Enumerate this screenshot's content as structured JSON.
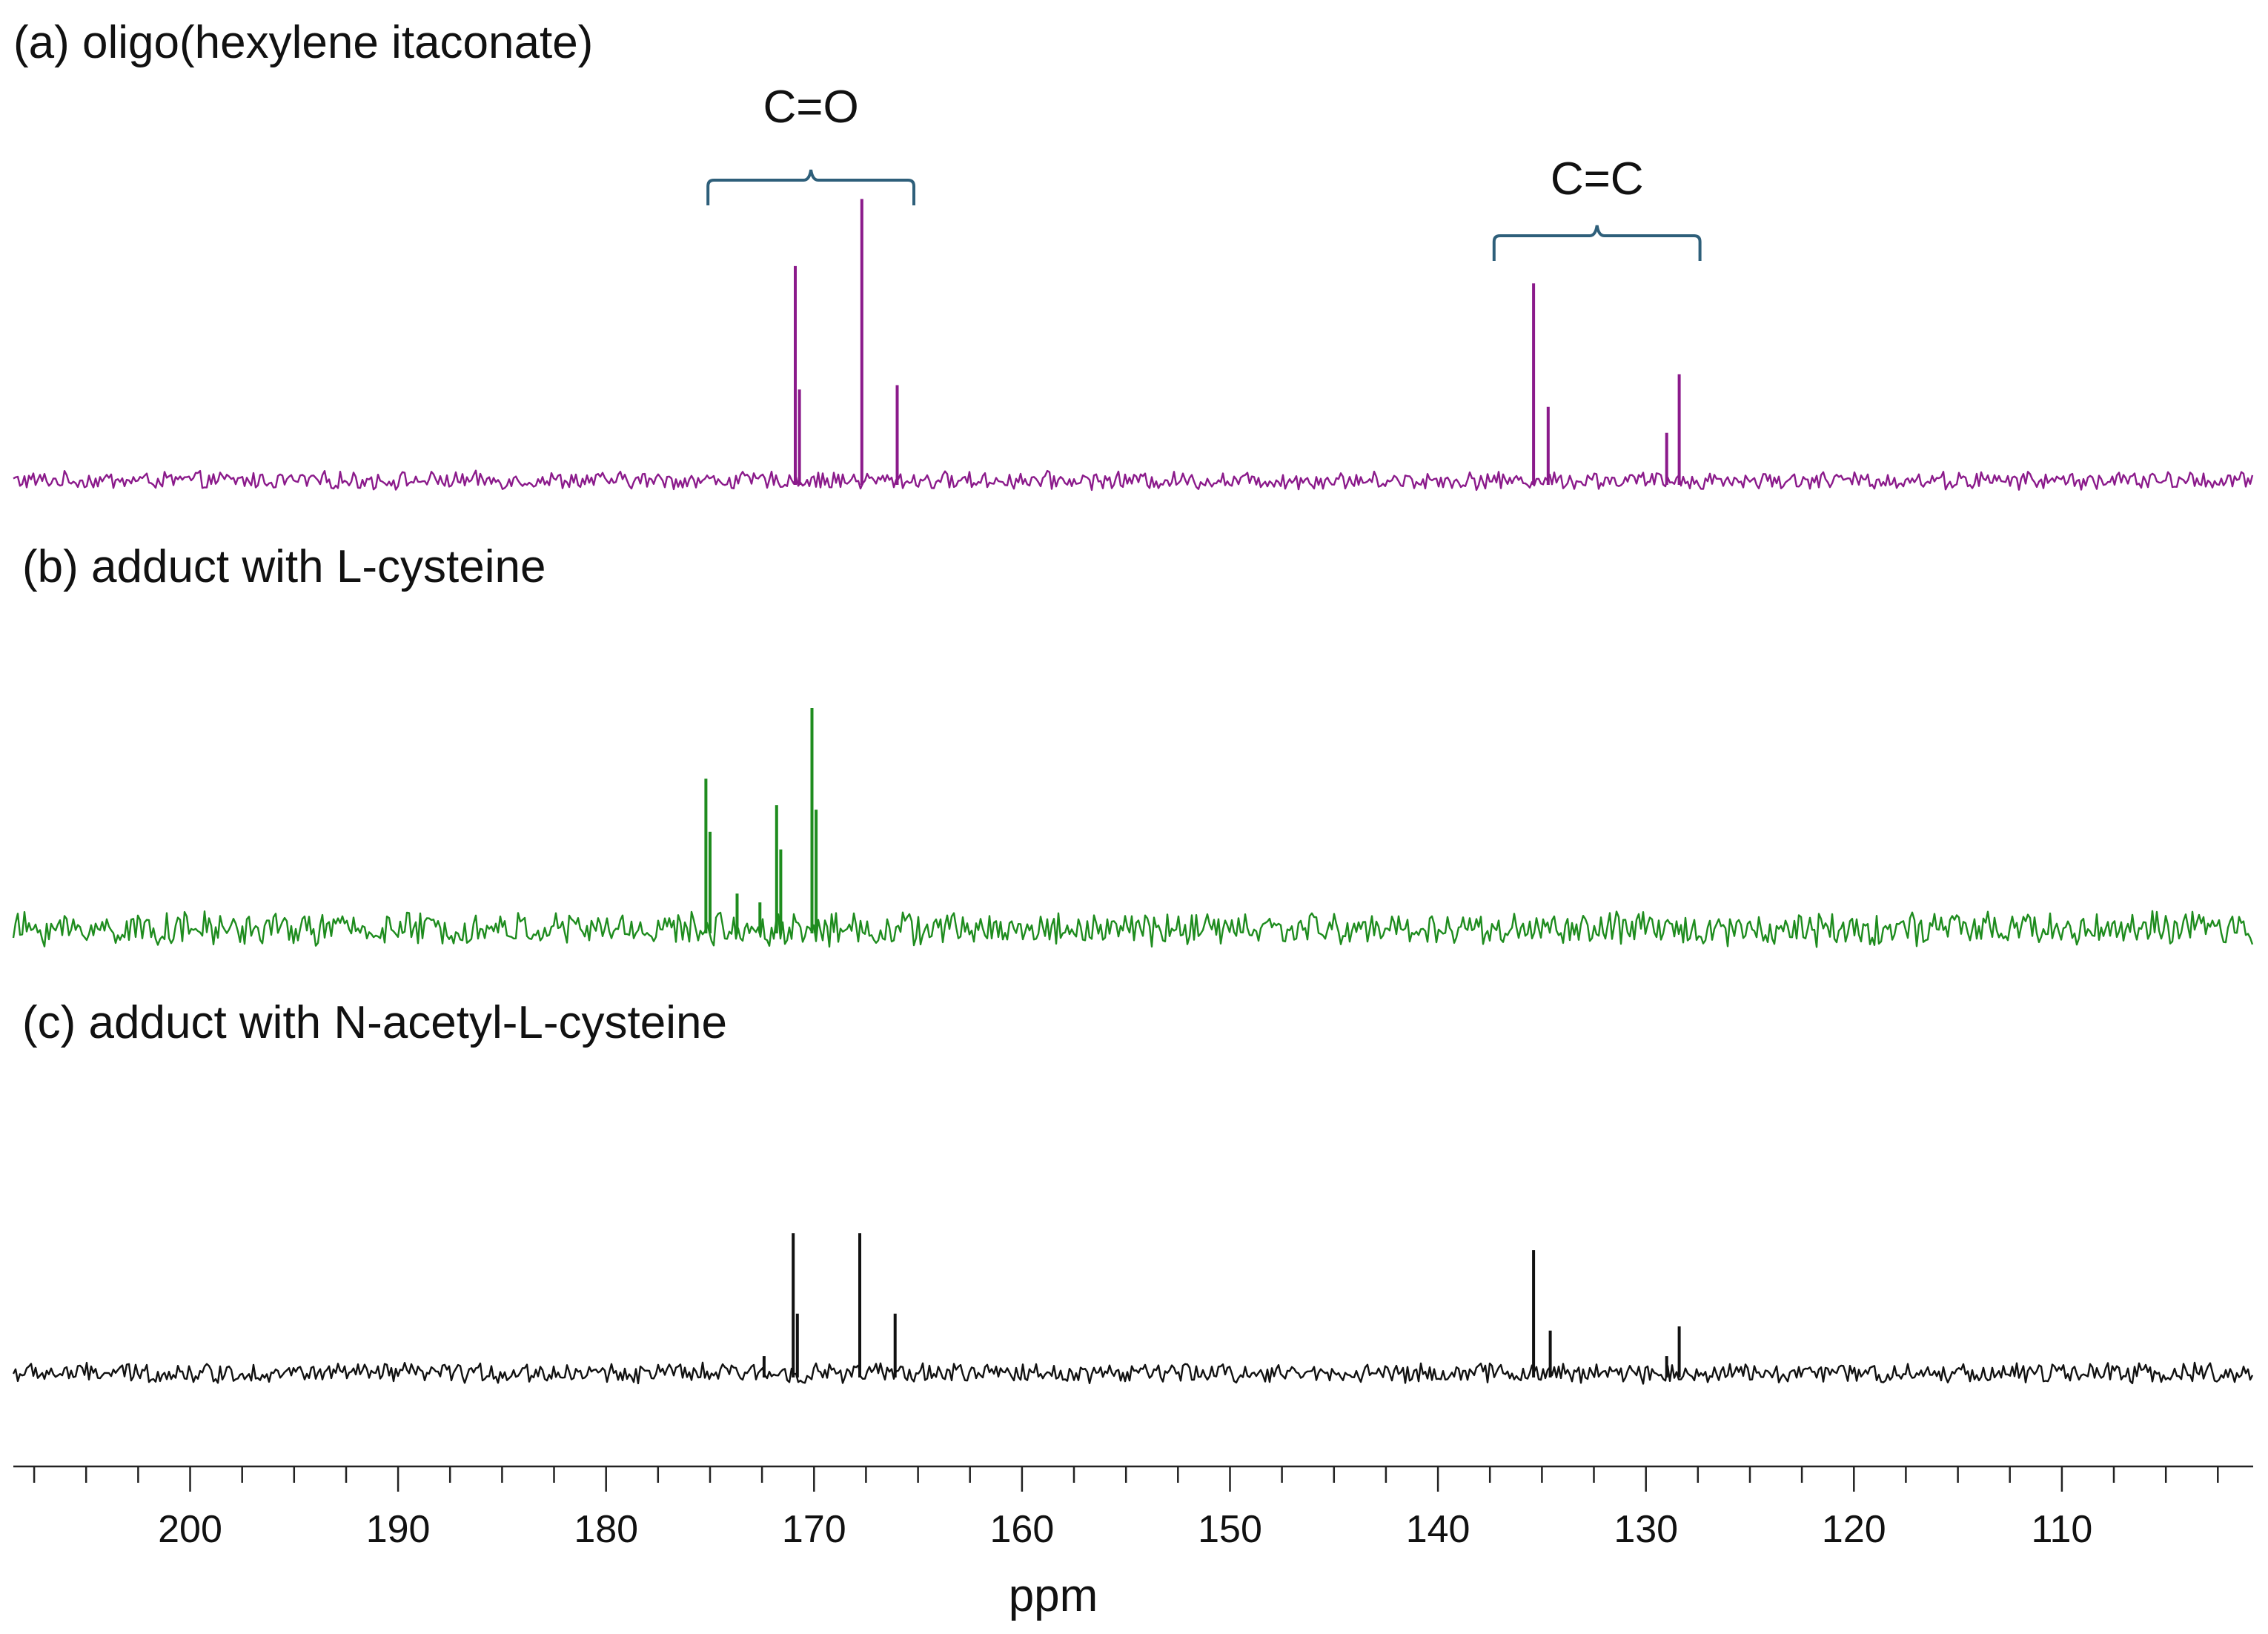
{
  "chart_data": {
    "type": "line",
    "xlabel": "ppm",
    "x_axis_reversed": true,
    "xlim": [
      208.5,
      100.8
    ],
    "ticks": {
      "major": [
        200,
        190,
        180,
        170,
        160,
        150,
        140,
        130,
        120,
        110
      ],
      "major_labels": [
        "200",
        "190",
        "180",
        "170",
        "160",
        "150",
        "140",
        "130",
        "120",
        "110"
      ],
      "minor_step": 2.5
    },
    "y_axis_shown": false,
    "grid": false,
    "series": [
      {
        "panel_label": "(a) oligo(hexylene itaconate)",
        "color": "#8B1A8B",
        "noise": 0.035,
        "peaks": [
          {
            "ppm": 170.9,
            "height": 0.99
          },
          {
            "ppm": 170.7,
            "height": 0.42
          },
          {
            "ppm": 167.7,
            "height": 1.3
          },
          {
            "ppm": 166.0,
            "height": 0.44
          },
          {
            "ppm": 135.4,
            "height": 0.91
          },
          {
            "ppm": 134.7,
            "height": 0.34
          },
          {
            "ppm": 129.0,
            "height": 0.22
          },
          {
            "ppm": 128.4,
            "height": 0.49
          }
        ]
      },
      {
        "panel_label": "(b) adduct with L-cysteine",
        "color": "#1E8C1E",
        "noise": 0.065,
        "peaks": [
          {
            "ppm": 175.2,
            "height": 0.68
          },
          {
            "ppm": 175.0,
            "height": 0.44
          },
          {
            "ppm": 173.7,
            "height": 0.16
          },
          {
            "ppm": 172.6,
            "height": 0.12
          },
          {
            "ppm": 171.8,
            "height": 0.56
          },
          {
            "ppm": 171.6,
            "height": 0.36
          },
          {
            "ppm": 170.1,
            "height": 1.0
          },
          {
            "ppm": 169.9,
            "height": 0.54
          }
        ]
      },
      {
        "panel_label": "(c) adduct with N-acetyl-L-cysteine",
        "color": "#111111",
        "noise": 0.04,
        "peaks": [
          {
            "ppm": 172.4,
            "height": 0.08
          },
          {
            "ppm": 171.0,
            "height": 0.66
          },
          {
            "ppm": 170.8,
            "height": 0.28
          },
          {
            "ppm": 167.8,
            "height": 0.66
          },
          {
            "ppm": 166.1,
            "height": 0.28
          },
          {
            "ppm": 135.4,
            "height": 0.58
          },
          {
            "ppm": 134.6,
            "height": 0.2
          },
          {
            "ppm": 129.0,
            "height": 0.08
          },
          {
            "ppm": 128.4,
            "height": 0.22
          }
        ]
      }
    ],
    "annotations": [
      {
        "label": "C=O",
        "range_ppm": [
          175.1,
          165.2
        ],
        "panel": 0,
        "color": "#2E5F7A"
      },
      {
        "label": "C=C",
        "range_ppm": [
          137.3,
          127.4
        ],
        "panel": 0,
        "color": "#2E5F7A"
      }
    ]
  }
}
